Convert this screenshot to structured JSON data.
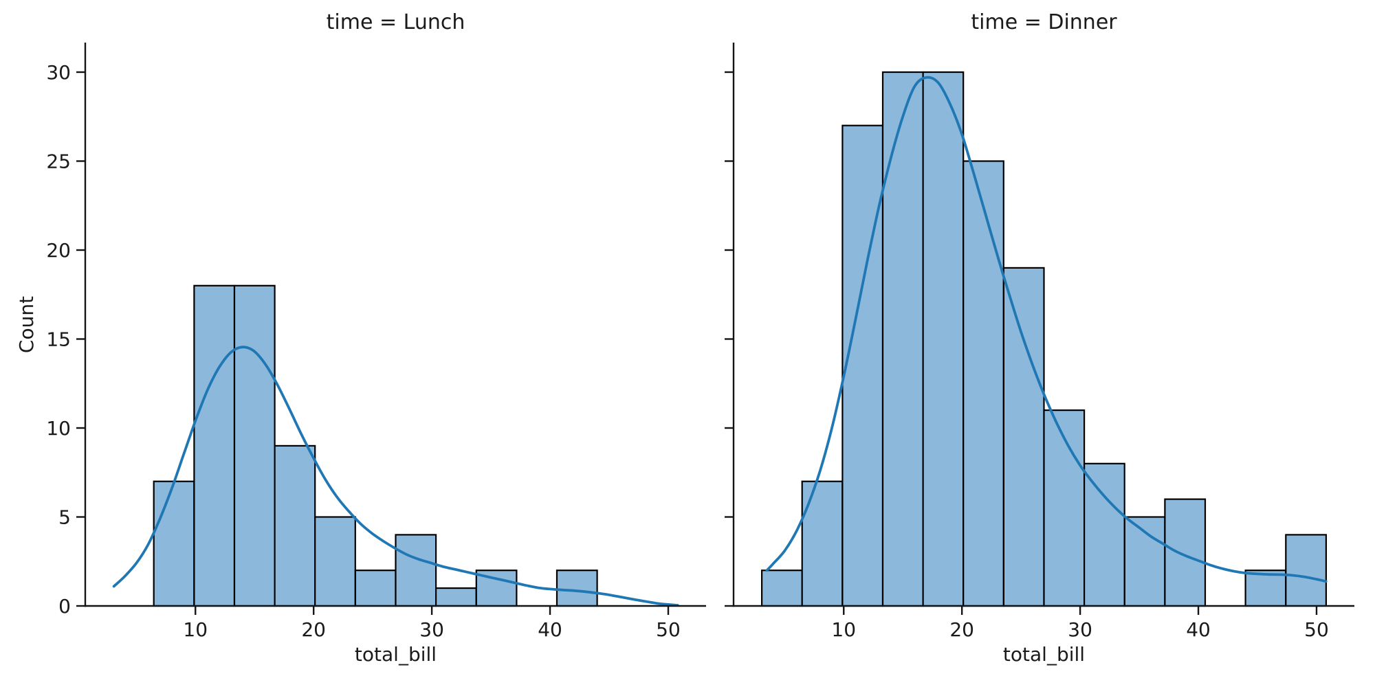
{
  "figure": {
    "ylabel": "Count"
  },
  "colors": {
    "bar_fill": "#8CB8DC",
    "bar_edge": "#000000",
    "kde_line": "#1F77B4",
    "axis_line": "#141414",
    "text": "#1A1A1A",
    "background": "#FFFFFF"
  },
  "chart_data": [
    {
      "type": "bar",
      "subtype": "histogram_with_kde",
      "title": "time = Lunch",
      "xlabel": "total_bill",
      "ylabel": "Count",
      "grid": false,
      "legend": false,
      "xlim": [
        0.68,
        53.2
      ],
      "ylim": [
        0,
        31.66
      ],
      "xticks": [
        10,
        20,
        30,
        40,
        50
      ],
      "yticks": [
        0,
        5,
        10,
        15,
        20,
        25,
        30
      ],
      "show_y_tick_labels": true,
      "bin_edges": [
        3.07,
        6.48,
        9.89,
        13.3,
        16.71,
        20.12,
        23.53,
        26.94,
        30.35,
        33.76,
        37.17,
        40.58,
        43.99,
        47.4,
        50.81
      ],
      "counts": [
        0,
        7,
        18,
        18,
        9,
        5,
        2,
        4,
        1,
        2,
        0,
        2,
        0,
        0
      ],
      "kde_points": [
        [
          3.1,
          1.1
        ],
        [
          4,
          1.65
        ],
        [
          5,
          2.4
        ],
        [
          6,
          3.45
        ],
        [
          7,
          4.9
        ],
        [
          8,
          6.6
        ],
        [
          9,
          8.5
        ],
        [
          10,
          10.4
        ],
        [
          11,
          12.1
        ],
        [
          12,
          13.4
        ],
        [
          13,
          14.25
        ],
        [
          14,
          14.55
        ],
        [
          15,
          14.3
        ],
        [
          16,
          13.5
        ],
        [
          17,
          12.35
        ],
        [
          18,
          11
        ],
        [
          19,
          9.6
        ],
        [
          20,
          8.3
        ],
        [
          21,
          7.1
        ],
        [
          22,
          6.1
        ],
        [
          23,
          5.3
        ],
        [
          24,
          4.6
        ],
        [
          25,
          4.05
        ],
        [
          26,
          3.6
        ],
        [
          27,
          3.2
        ],
        [
          28,
          2.85
        ],
        [
          29,
          2.6
        ],
        [
          30,
          2.4
        ],
        [
          31,
          2.2
        ],
        [
          32,
          2.05
        ],
        [
          33,
          1.9
        ],
        [
          34,
          1.75
        ],
        [
          35,
          1.6
        ],
        [
          36,
          1.45
        ],
        [
          37,
          1.3
        ],
        [
          38,
          1.15
        ],
        [
          39,
          1.02
        ],
        [
          40,
          0.95
        ],
        [
          41,
          0.9
        ],
        [
          42,
          0.86
        ],
        [
          43,
          0.8
        ],
        [
          44,
          0.72
        ],
        [
          45,
          0.62
        ],
        [
          46,
          0.5
        ],
        [
          47,
          0.38
        ],
        [
          48,
          0.26
        ],
        [
          49,
          0.15
        ],
        [
          50,
          0.08
        ],
        [
          50.8,
          0.04
        ]
      ]
    },
    {
      "type": "bar",
      "subtype": "histogram_with_kde",
      "title": "time = Dinner",
      "xlabel": "total_bill",
      "ylabel": "",
      "grid": false,
      "legend": false,
      "xlim": [
        0.68,
        53.2
      ],
      "ylim": [
        0,
        31.66
      ],
      "xticks": [
        10,
        20,
        30,
        40,
        50
      ],
      "yticks": [
        0,
        5,
        10,
        15,
        20,
        25,
        30
      ],
      "show_y_tick_labels": false,
      "bin_edges": [
        3.07,
        6.48,
        9.89,
        13.3,
        16.71,
        20.12,
        23.53,
        26.94,
        30.35,
        33.76,
        37.17,
        40.58,
        43.99,
        47.4,
        50.81
      ],
      "counts": [
        2,
        7,
        27,
        30,
        30,
        25,
        19,
        11,
        8,
        5,
        6,
        0,
        2,
        4
      ],
      "kde_points": [
        [
          3.5,
          2
        ],
        [
          4,
          2.35
        ],
        [
          5,
          3.1
        ],
        [
          6,
          4.2
        ],
        [
          7,
          5.7
        ],
        [
          8,
          7.6
        ],
        [
          9,
          10
        ],
        [
          10,
          12.9
        ],
        [
          11,
          16.1
        ],
        [
          12,
          19.4
        ],
        [
          13,
          22.5
        ],
        [
          14,
          25.2
        ],
        [
          15,
          27.5
        ],
        [
          16,
          29.2
        ],
        [
          17,
          29.7
        ],
        [
          18,
          29.4
        ],
        [
          19,
          28.2
        ],
        [
          20,
          26.5
        ],
        [
          21,
          24.3
        ],
        [
          22,
          22
        ],
        [
          23,
          19.7
        ],
        [
          24,
          17.5
        ],
        [
          25,
          15.4
        ],
        [
          26,
          13.5
        ],
        [
          27,
          11.8
        ],
        [
          28,
          10.3
        ],
        [
          29,
          9
        ],
        [
          30,
          7.9
        ],
        [
          31,
          7
        ],
        [
          32,
          6.2
        ],
        [
          33,
          5.5
        ],
        [
          34,
          4.9
        ],
        [
          35,
          4.4
        ],
        [
          36,
          3.9
        ],
        [
          37,
          3.5
        ],
        [
          38,
          3.1
        ],
        [
          39,
          2.8
        ],
        [
          40,
          2.55
        ],
        [
          41,
          2.3
        ],
        [
          42,
          2.1
        ],
        [
          43,
          1.95
        ],
        [
          44,
          1.85
        ],
        [
          45,
          1.8
        ],
        [
          46,
          1.77
        ],
        [
          47,
          1.76
        ],
        [
          48,
          1.72
        ],
        [
          49,
          1.63
        ],
        [
          50,
          1.5
        ],
        [
          50.8,
          1.38
        ]
      ]
    }
  ]
}
